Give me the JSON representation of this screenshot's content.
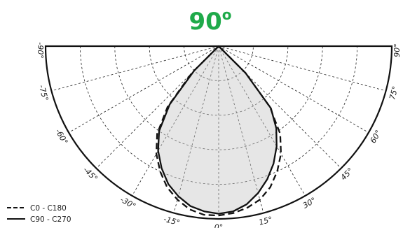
{
  "chart_data": {
    "type": "polar",
    "title": "90",
    "title_superscript": "o",
    "title_color": "#1faa4a",
    "angle_ticks": [
      {
        "label": "-90°",
        "angle": -90
      },
      {
        "label": "-75°",
        "angle": -75
      },
      {
        "label": "-60°",
        "angle": -60
      },
      {
        "label": "-45°",
        "angle": -45
      },
      {
        "label": "-30°",
        "angle": -30
      },
      {
        "label": "-15°",
        "angle": -15
      },
      {
        "label": "0°",
        "angle": 0
      },
      {
        "label": "15°",
        "angle": 15
      },
      {
        "label": "30°",
        "angle": 30
      },
      {
        "label": "45°",
        "angle": 45
      },
      {
        "label": "60°",
        "angle": 60
      },
      {
        "label": "75°",
        "angle": 75
      },
      {
        "label": "90°",
        "angle": 90
      }
    ],
    "radial_rings": 5,
    "r_max": 1.0,
    "grid": true,
    "legend_position": "bottom-left",
    "series": [
      {
        "name": "C0 - C180",
        "line_style": "dashed",
        "points": [
          {
            "angle": -45,
            "r": 0.22
          },
          {
            "angle": -40,
            "r": 0.46
          },
          {
            "angle": -35,
            "r": 0.62
          },
          {
            "angle": -30,
            "r": 0.72
          },
          {
            "angle": -25,
            "r": 0.8
          },
          {
            "angle": -20,
            "r": 0.87
          },
          {
            "angle": -15,
            "r": 0.92
          },
          {
            "angle": -10,
            "r": 0.96
          },
          {
            "angle": -5,
            "r": 0.98
          },
          {
            "angle": 0,
            "r": 0.98
          },
          {
            "angle": 5,
            "r": 0.97
          },
          {
            "angle": 10,
            "r": 0.95
          },
          {
            "angle": 15,
            "r": 0.92
          },
          {
            "angle": 20,
            "r": 0.87
          },
          {
            "angle": 25,
            "r": 0.8
          },
          {
            "angle": 30,
            "r": 0.72
          },
          {
            "angle": 35,
            "r": 0.62
          },
          {
            "angle": 40,
            "r": 0.46
          },
          {
            "angle": 45,
            "r": 0.22
          }
        ]
      },
      {
        "name": "C90 - C270",
        "line_style": "solid",
        "points": [
          {
            "angle": -45,
            "r": 0.2
          },
          {
            "angle": -40,
            "r": 0.44
          },
          {
            "angle": -35,
            "r": 0.6
          },
          {
            "angle": -30,
            "r": 0.7
          },
          {
            "angle": -25,
            "r": 0.78
          },
          {
            "angle": -20,
            "r": 0.85
          },
          {
            "angle": -15,
            "r": 0.9
          },
          {
            "angle": -10,
            "r": 0.94
          },
          {
            "angle": -5,
            "r": 0.96
          },
          {
            "angle": 0,
            "r": 0.97
          },
          {
            "angle": 5,
            "r": 0.96
          },
          {
            "angle": 10,
            "r": 0.93
          },
          {
            "angle": 15,
            "r": 0.88
          },
          {
            "angle": 20,
            "r": 0.82
          },
          {
            "angle": 25,
            "r": 0.75
          },
          {
            "angle": 30,
            "r": 0.67
          },
          {
            "angle": 35,
            "r": 0.58
          },
          {
            "angle": 40,
            "r": 0.47
          },
          {
            "angle": 45,
            "r": 0.22
          }
        ]
      }
    ]
  }
}
